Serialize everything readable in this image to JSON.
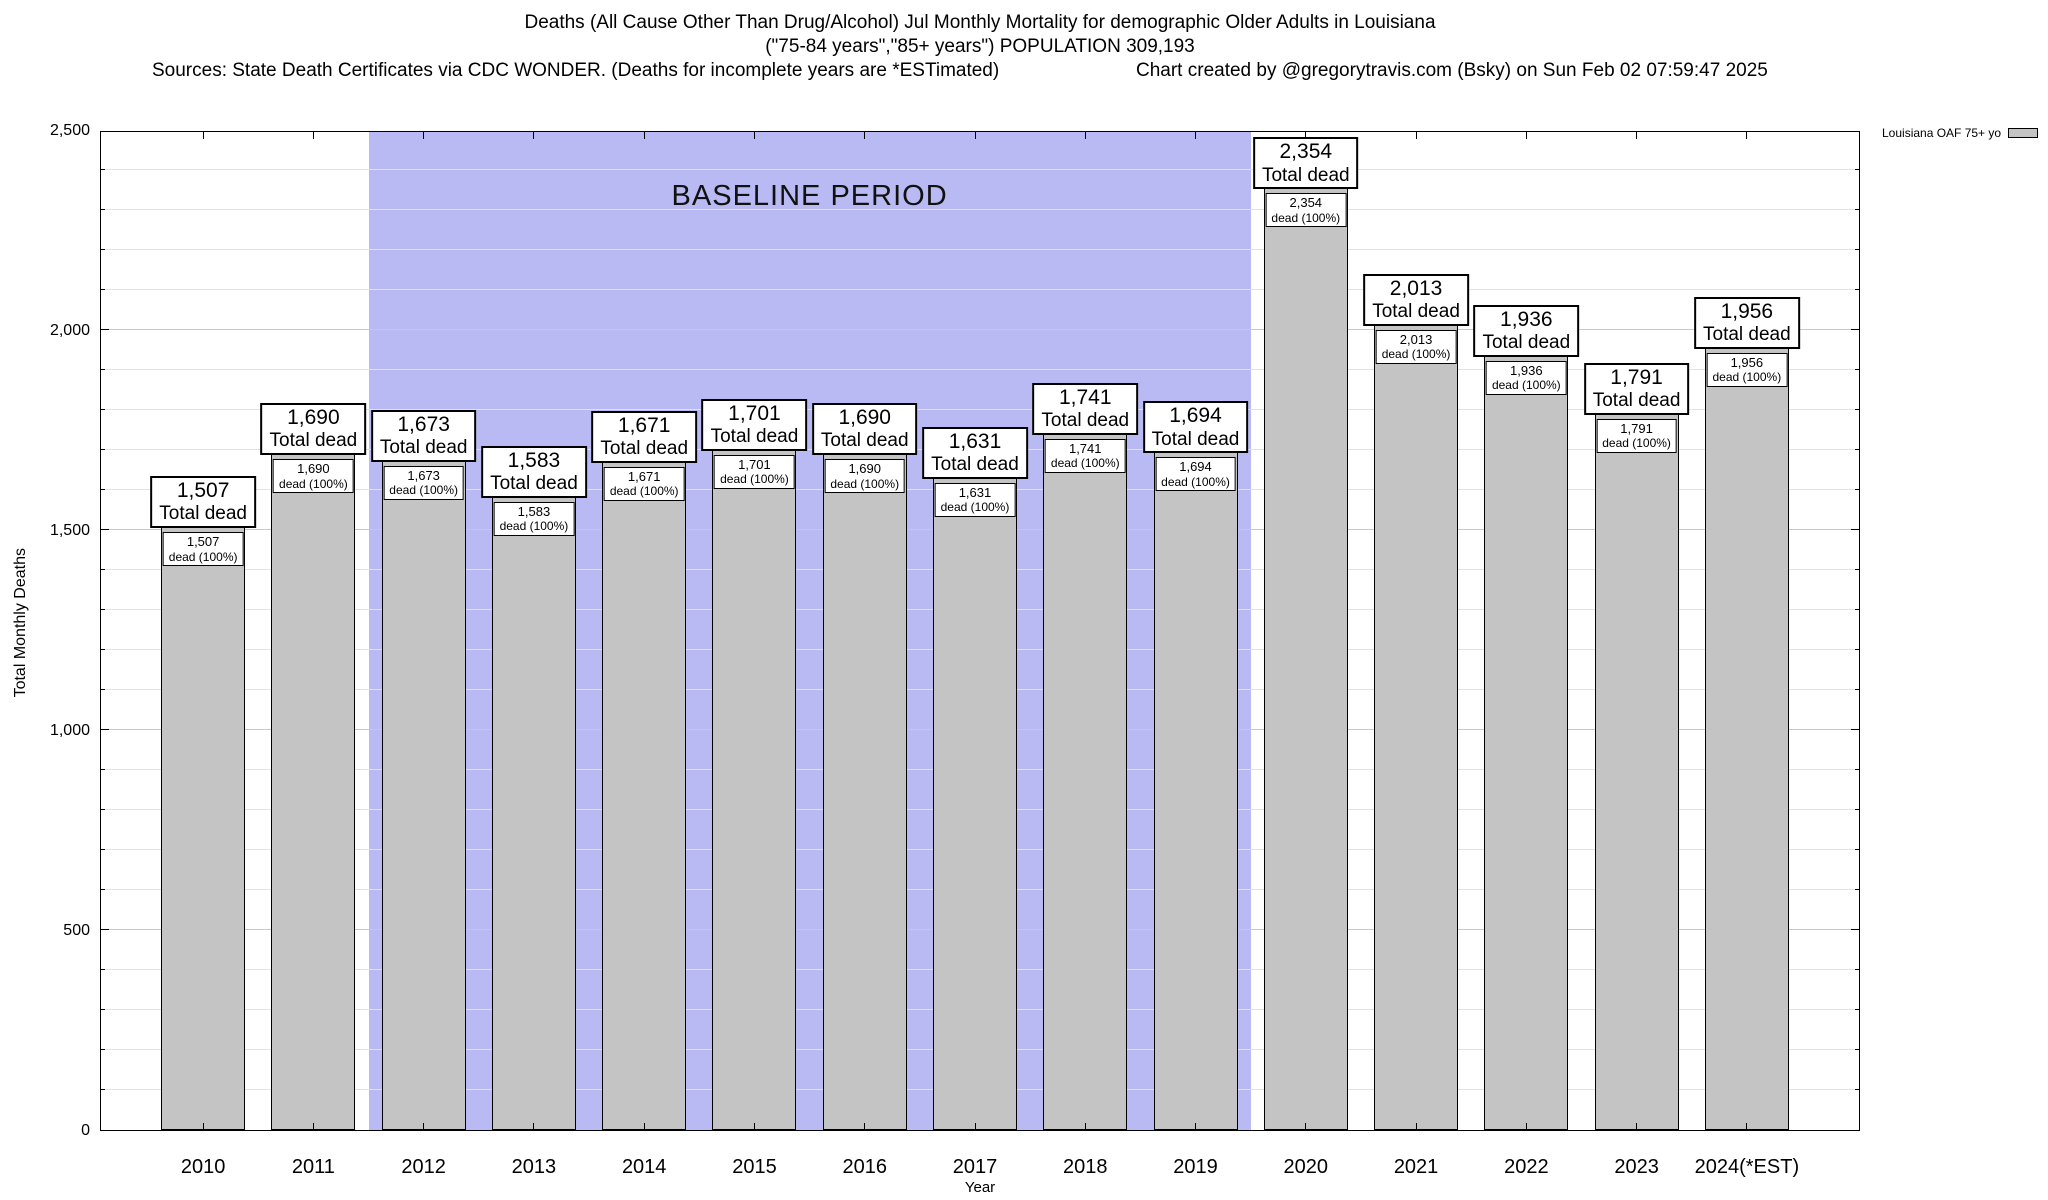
{
  "chart_data": {
    "type": "bar",
    "title": "Deaths (All Cause Other Than Drug/Alcohol) Jul Monthly Mortality for demographic Older Adults in Louisiana",
    "subtitle": "(\"75-84 years\",\"85+ years\") POPULATION 309,193",
    "source_line": "Sources: State Death Certificates via CDC WONDER. (Deaths for incomplete years are *ESTimated)",
    "credit_line": "Chart created by @gregorytravis.com (Bsky) on Sun Feb 02 07:59:47 2025",
    "xlabel": "Year",
    "ylabel": "Total Monthly Deaths",
    "ylim": [
      0,
      2500
    ],
    "ytick_step": 500,
    "ygrid_minor_step": 100,
    "ytick_labels": [
      "0",
      "500",
      "1,000",
      "1,500",
      "2,000",
      "2,500"
    ],
    "grid": true,
    "legend": {
      "label": "Louisiana OAF 75+ yo",
      "position": "top-right"
    },
    "bar_color": "#c4c4c4",
    "baseline_region": {
      "label": "BASELINE PERIOD",
      "start_category": "2012",
      "end_category": "2019",
      "color": "#b9b9f3"
    },
    "categories": [
      "2010",
      "2011",
      "2012",
      "2013",
      "2014",
      "2015",
      "2016",
      "2017",
      "2018",
      "2019",
      "2020",
      "2021",
      "2022",
      "2023",
      "2024(*EST)"
    ],
    "values": [
      1507,
      1690,
      1673,
      1583,
      1671,
      1701,
      1690,
      1631,
      1741,
      1694,
      2354,
      2013,
      1936,
      1791,
      1956
    ],
    "values_formatted": [
      "1,507",
      "1,690",
      "1,673",
      "1,583",
      "1,671",
      "1,701",
      "1,690",
      "1,631",
      "1,741",
      "1,694",
      "2,354",
      "2,013",
      "1,936",
      "1,791",
      "1,956"
    ],
    "outer_label_suffix": "Total dead",
    "inner_label_suffix": "dead (100%)"
  }
}
